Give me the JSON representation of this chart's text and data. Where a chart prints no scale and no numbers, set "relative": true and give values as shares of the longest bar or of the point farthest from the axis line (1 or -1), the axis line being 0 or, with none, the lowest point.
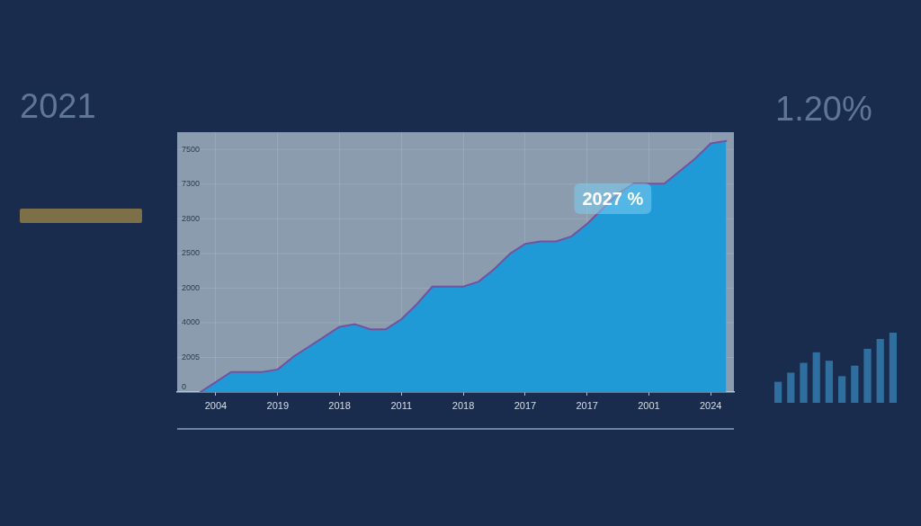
{
  "chart_data": [
    {
      "type": "other",
      "annotations": [
        "2021"
      ]
    },
    {
      "type": "area",
      "categories": [
        null,
        null,
        "2004",
        null,
        null,
        null,
        "2019",
        null,
        null,
        null,
        "2018",
        null,
        null,
        null,
        "2011",
        null,
        null,
        null,
        "2018",
        null,
        null,
        null,
        "2017",
        null,
        null,
        null,
        "2017",
        null,
        null,
        null,
        "2001",
        null,
        null,
        null,
        "2024",
        null
      ],
      "values": [
        null,
        0,
        0.04,
        0.08,
        0.08,
        0.08,
        0.09,
        0.14,
        0.18,
        0.22,
        0.26,
        0.27,
        0.25,
        0.25,
        0.29,
        0.35,
        0.42,
        0.42,
        0.42,
        0.44,
        0.49,
        0.55,
        0.59,
        0.6,
        0.6,
        0.62,
        0.67,
        0.73,
        0.79,
        0.83,
        0.83,
        0.83,
        0.88,
        0.93,
        0.99,
        1
      ],
      "color": "#1f9ad6",
      "relative": true,
      "grid": true,
      "annotations": [
        "0",
        "2005",
        "4000",
        "2000",
        "2500",
        "2800",
        "7300",
        "7500",
        {
          "text": "2027 %",
          "y": 0.77
        }
      ]
    },
    {
      "type": "bar",
      "categories": [
        null,
        null,
        null,
        null,
        null,
        null,
        null,
        null,
        null,
        null
      ],
      "values": [
        0.3,
        0.43,
        0.57,
        0.72,
        0.6,
        0.38,
        0.53,
        0.77,
        0.91,
        1
      ],
      "color": "#2f6f9f",
      "relative": true,
      "annotations": [
        "1.20%"
      ]
    }
  ]
}
